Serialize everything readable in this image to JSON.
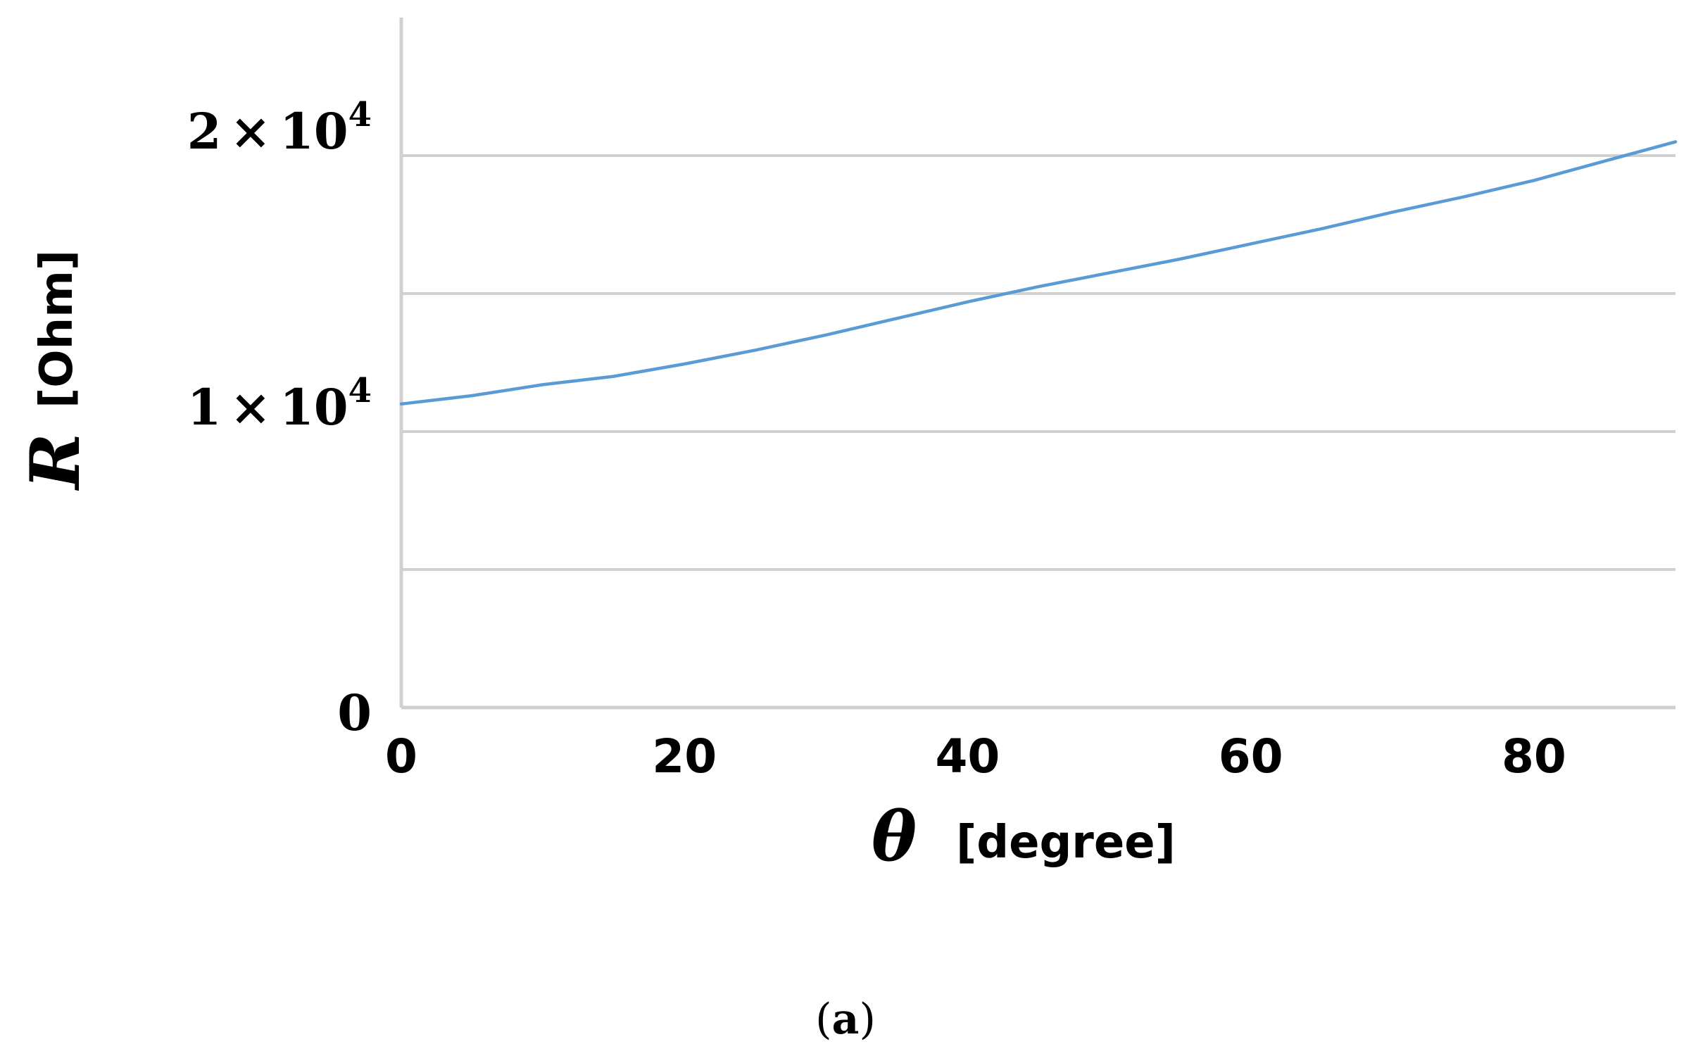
{
  "chart_data": {
    "type": "line",
    "xlabel_symbol": "θ",
    "xlabel_unit": "[degree]",
    "ylabel_symbol": "R",
    "ylabel_unit": "[Ohm]",
    "xlim": [
      0,
      90
    ],
    "ylim": [
      0,
      25000
    ],
    "grid": true,
    "x_ticks": [
      "0",
      "20",
      "40",
      "60",
      "80"
    ],
    "y_ticks": [
      {
        "value": 0,
        "mantissa": "0",
        "times": "",
        "base": "",
        "exponent": ""
      },
      {
        "value": 10000,
        "mantissa": "1",
        "times": "×",
        "base": "10",
        "exponent": "4"
      },
      {
        "value": 20000,
        "mantissa": "2",
        "times": "×",
        "base": "10",
        "exponent": "4"
      }
    ],
    "series": [
      {
        "color": "#5b9bd5",
        "x": [
          0,
          5,
          10,
          15,
          20,
          25,
          30,
          35,
          40,
          45,
          50,
          55,
          60,
          65,
          70,
          75,
          80,
          85,
          90
        ],
        "y": [
          11000,
          11300,
          11700,
          12000,
          12450,
          12950,
          13500,
          14100,
          14700,
          15250,
          15750,
          16250,
          16800,
          17350,
          17950,
          18500,
          19100,
          19800,
          20500
        ]
      }
    ],
    "caption_open": "(",
    "caption_letter": "a",
    "caption_close": ")"
  }
}
